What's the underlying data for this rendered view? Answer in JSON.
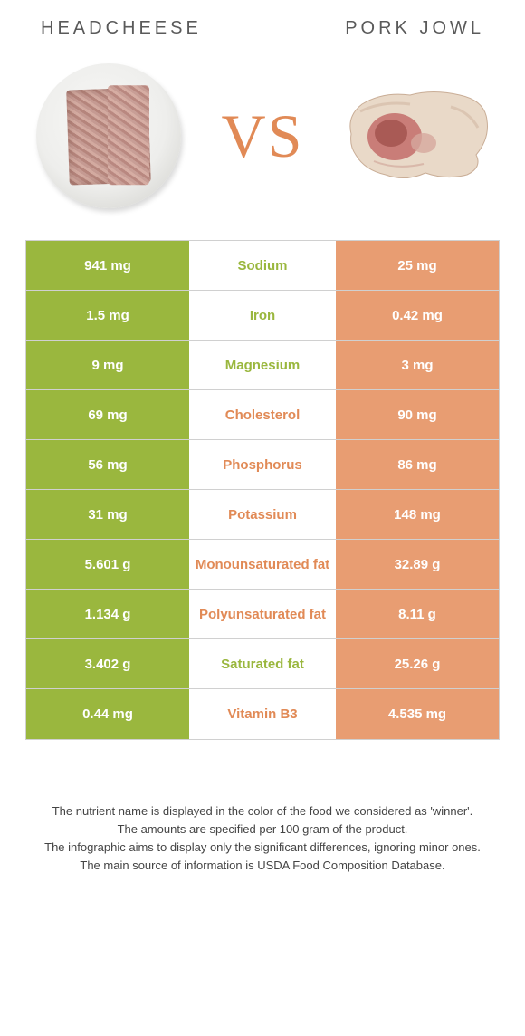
{
  "colors": {
    "green": "#9ab73e",
    "orange": "#e89d72",
    "vs_text": "#e18a56",
    "title_text": "#5a5a5a",
    "border": "#d0d0d0",
    "white": "#ffffff",
    "footnote_text": "#444444"
  },
  "header": {
    "left_title": "HEADCHEESE",
    "right_title": "PORK JOWL",
    "vs_label": "VS"
  },
  "rows": [
    {
      "left": "941 mg",
      "label": "Sodium",
      "right": "25 mg",
      "winner": "left"
    },
    {
      "left": "1.5 mg",
      "label": "Iron",
      "right": "0.42 mg",
      "winner": "left"
    },
    {
      "left": "9 mg",
      "label": "Magnesium",
      "right": "3 mg",
      "winner": "left"
    },
    {
      "left": "69 mg",
      "label": "Cholesterol",
      "right": "90 mg",
      "winner": "right"
    },
    {
      "left": "56 mg",
      "label": "Phosphorus",
      "right": "86 mg",
      "winner": "right"
    },
    {
      "left": "31 mg",
      "label": "Potassium",
      "right": "148 mg",
      "winner": "right"
    },
    {
      "left": "5.601 g",
      "label": "Monounsaturated fat",
      "right": "32.89 g",
      "winner": "right"
    },
    {
      "left": "1.134 g",
      "label": "Polyunsaturated fat",
      "right": "8.11 g",
      "winner": "right"
    },
    {
      "left": "3.402 g",
      "label": "Saturated fat",
      "right": "25.26 g",
      "winner": "left"
    },
    {
      "left": "0.44 mg",
      "label": "Vitamin B3",
      "right": "4.535 mg",
      "winner": "right"
    }
  ],
  "footnotes": [
    "The nutrient name is displayed in the color of the food we considered as 'winner'.",
    "The amounts are specified per 100 gram of the product.",
    "The infographic aims to display only the significant differences, ignoring minor ones.",
    "The main source of information is USDA Food Composition Database."
  ]
}
